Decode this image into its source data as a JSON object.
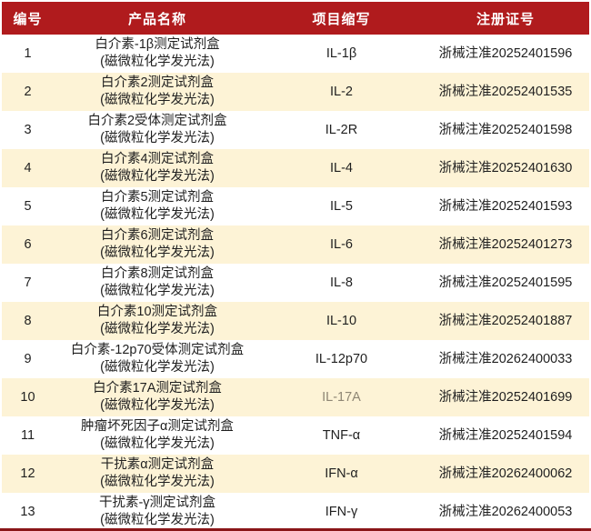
{
  "table": {
    "columns": [
      {
        "label": "编号"
      },
      {
        "label": "产品名称"
      },
      {
        "label": "项目缩写"
      },
      {
        "label": "注册证号"
      }
    ],
    "rows": [
      {
        "id": "1",
        "name_line1": "白介素-1β测定试剂盒",
        "name_line2": "(磁微粒化学发光法)",
        "abbr": "IL-1β",
        "cert": "浙械注准20252401596"
      },
      {
        "id": "2",
        "name_line1": "白介素2测定试剂盒",
        "name_line2": "(磁微粒化学发光法)",
        "abbr": "IL-2",
        "cert": "浙械注准20252401535"
      },
      {
        "id": "3",
        "name_line1": "白介素2受体测定试剂盒",
        "name_line2": "(磁微粒化学发光法)",
        "abbr": "IL-2R",
        "cert": "浙械注准20252401598"
      },
      {
        "id": "4",
        "name_line1": "白介素4测定试剂盒",
        "name_line2": "(磁微粒化学发光法)",
        "abbr": "IL-4",
        "cert": "浙械注准20252401630"
      },
      {
        "id": "5",
        "name_line1": "白介素5测定试剂盒",
        "name_line2": "(磁微粒化学发光法)",
        "abbr": "IL-5",
        "cert": "浙械注准20252401593"
      },
      {
        "id": "6",
        "name_line1": "白介素6测定试剂盒",
        "name_line2": "(磁微粒化学发光法)",
        "abbr": "IL-6",
        "cert": "浙械注准20252401273"
      },
      {
        "id": "7",
        "name_line1": "白介素8测定试剂盒",
        "name_line2": "(磁微粒化学发光法)",
        "abbr": "IL-8",
        "cert": "浙械注准20252401595"
      },
      {
        "id": "8",
        "name_line1": "白介素10测定试剂盒",
        "name_line2": "(磁微粒化学发光法)",
        "abbr": "IL-10",
        "cert": "浙械注准20252401887"
      },
      {
        "id": "9",
        "name_line1": "白介素-12p70受体测定试剂盒",
        "name_line2": "(磁微粒化学发光法)",
        "abbr": "IL-12p70",
        "cert": "浙械注准20262400033"
      },
      {
        "id": "10",
        "name_line1": "白介素17A测定试剂盒",
        "name_line2": "(磁微粒化学发光法)",
        "abbr": "IL-17A",
        "cert": "浙械注准20252401699",
        "abbr_muted": true
      },
      {
        "id": "11",
        "name_line1": "肿瘤坏死因子α测定试剂盒",
        "name_line2": "(磁微粒化学发光法)",
        "abbr": "TNF-α",
        "cert": "浙械注准20252401594"
      },
      {
        "id": "12",
        "name_line1": "干扰素α测定试剂盒",
        "name_line2": "(磁微粒化学发光法)",
        "abbr": "IFN-α",
        "cert": "浙械注准20262400062"
      },
      {
        "id": "13",
        "name_line1": "干扰素-γ测定试剂盒",
        "name_line2": "(磁微粒化学发光法)",
        "abbr": "IFN-γ",
        "cert": "浙械注准20262400053"
      }
    ]
  },
  "colors": {
    "header_bg": "#b01b1d",
    "header_text": "#ffffff",
    "row_bg": "#ffffff",
    "row_alt_bg": "#fdf3d6",
    "body_text": "#1f1f1f",
    "muted_abbr_text": "#8e8674",
    "bottom_bar": "#8a1518"
  }
}
